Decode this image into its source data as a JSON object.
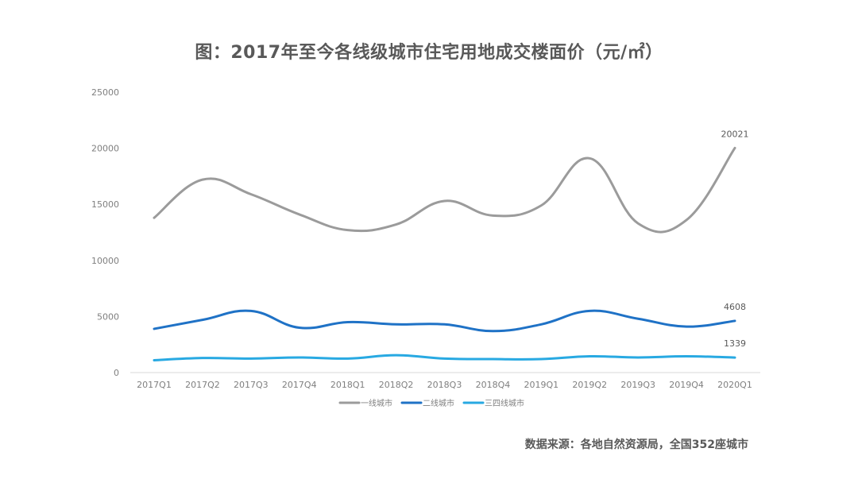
{
  "chart_data": {
    "type": "line",
    "title": "图：2017年至今各线级城市住宅用地成交楼面价（元/㎡）",
    "categories": [
      "2017Q1",
      "2017Q2",
      "2017Q3",
      "2017Q4",
      "2018Q1",
      "2018Q2",
      "2018Q3",
      "2018Q4",
      "2019Q1",
      "2019Q2",
      "2019Q3",
      "2019Q4",
      "2020Q1"
    ],
    "ylim": [
      0,
      25000
    ],
    "yticks": [
      0,
      5000,
      10000,
      15000,
      20000,
      25000
    ],
    "grid": false,
    "legend_position": "bottom",
    "series": [
      {
        "name": "一线城市",
        "color": "#9b9b9b",
        "values": [
          13800,
          17200,
          15900,
          14100,
          12700,
          13200,
          15300,
          14000,
          14900,
          19100,
          13300,
          13600,
          20021
        ],
        "end_label": "20021"
      },
      {
        "name": "二线城市",
        "color": "#1f72c6",
        "values": [
          3900,
          4700,
          5500,
          4000,
          4500,
          4300,
          4300,
          3700,
          4300,
          5500,
          4800,
          4100,
          4608
        ],
        "end_label": "4608"
      },
      {
        "name": "三四线城市",
        "color": "#28a9e2",
        "values": [
          1100,
          1300,
          1250,
          1350,
          1250,
          1550,
          1250,
          1200,
          1200,
          1450,
          1350,
          1450,
          1339
        ],
        "end_label": "1339"
      }
    ]
  },
  "source": "数据来源：各地自然资源局，全国352座城市"
}
